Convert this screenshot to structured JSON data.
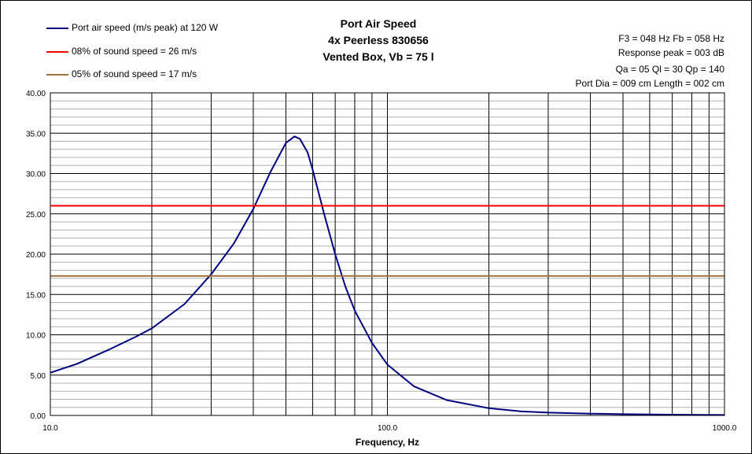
{
  "chart_data": {
    "type": "line",
    "title": [
      "Port Air Speed",
      "4x Peerless 830656",
      "Vented Box, Vb = 75 l"
    ],
    "xlabel": "Frequency, Hz",
    "ylabel": "",
    "x_scale": "log",
    "xlim": [
      10,
      1000
    ],
    "ylim": [
      0,
      40
    ],
    "x_tick_labels": [
      "10.0",
      "100.0",
      "1000.0"
    ],
    "y_tick_labels": [
      "0.00",
      "5.00",
      "10.00",
      "15.00",
      "20.00",
      "25.00",
      "30.00",
      "35.00",
      "40.00"
    ],
    "grid": true,
    "legend_position": "top-left",
    "info": [
      "F3 = 048 Hz  Fb = 058 Hz",
      "Response peak = 003 dB",
      "Qa = 05  Ql = 30  Qp = 140",
      "Port Dia = 009 cm  Length = 002 cm"
    ],
    "series": [
      {
        "name": "Port air speed (m/s peak) at 120 W",
        "color": "#000080",
        "x": [
          10,
          12,
          15,
          18,
          20,
          25,
          30,
          35,
          40,
          45,
          50,
          53,
          55,
          58,
          60,
          65,
          70,
          75,
          80,
          90,
          100,
          120,
          150,
          200,
          250,
          300,
          400,
          500,
          700,
          1000
        ],
        "y": [
          5.3,
          6.4,
          8.2,
          9.8,
          10.8,
          13.8,
          17.5,
          21.3,
          25.6,
          30.2,
          33.8,
          34.6,
          34.3,
          32.6,
          30.5,
          24.9,
          20.0,
          16.0,
          13.0,
          9.0,
          6.3,
          3.6,
          1.9,
          0.9,
          0.5,
          0.35,
          0.22,
          0.16,
          0.1,
          0.06
        ]
      },
      {
        "name": "08% of sound speed = 26 m/s",
        "color": "#ff0000",
        "x": [
          10,
          1000
        ],
        "y": [
          26,
          26
        ]
      },
      {
        "name": "05% of sound speed = 17 m/s",
        "color": "#a0703a",
        "x": [
          10,
          1000
        ],
        "y": [
          17.3,
          17.3
        ]
      }
    ]
  }
}
